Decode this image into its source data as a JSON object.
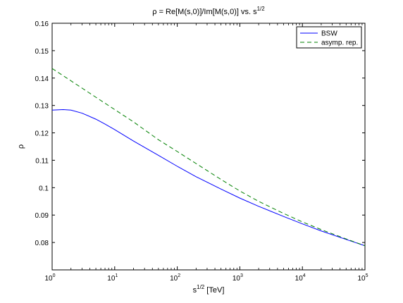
{
  "chart_data": {
    "type": "line",
    "title": "ρ = Re[M(s,0)]/Im[M(s,0)] vs. s",
    "title_superscript": "1/2",
    "xlabel": "s",
    "xlabel_superscript": "1/2",
    "xlabel_unit": " [TeV]",
    "ylabel": "ρ",
    "xscale": "log",
    "xlim": [
      1,
      100000
    ],
    "ylim": [
      0.07,
      0.16
    ],
    "grid": false,
    "legend_position": "top-right",
    "x_ticks": [
      {
        "value": 1,
        "base": "10",
        "exp": "0"
      },
      {
        "value": 10,
        "base": "10",
        "exp": "1"
      },
      {
        "value": 100,
        "base": "10",
        "exp": "2"
      },
      {
        "value": 1000,
        "base": "10",
        "exp": "3"
      },
      {
        "value": 10000,
        "base": "10",
        "exp": "4"
      },
      {
        "value": 100000,
        "base": "10",
        "exp": "5"
      }
    ],
    "y_ticks": [
      {
        "value": 0.08,
        "label": "0.08"
      },
      {
        "value": 0.09,
        "label": "0.09"
      },
      {
        "value": 0.1,
        "label": "0.1"
      },
      {
        "value": 0.11,
        "label": "0.11"
      },
      {
        "value": 0.12,
        "label": "0.12"
      },
      {
        "value": 0.13,
        "label": "0.13"
      },
      {
        "value": 0.14,
        "label": "0.14"
      },
      {
        "value": 0.15,
        "label": "0.15"
      },
      {
        "value": 0.16,
        "label": "0.16"
      }
    ],
    "series": [
      {
        "name": "BSW",
        "color": "#0000ff",
        "line_style": "solid",
        "x": [
          1,
          1.5,
          2,
          3,
          5,
          7,
          10,
          20,
          50,
          100,
          200,
          500,
          1000,
          2000,
          5000,
          10000,
          20000,
          50000,
          100000
        ],
        "y": [
          0.1283,
          0.1285,
          0.1283,
          0.1272,
          0.125,
          0.1232,
          0.1212,
          0.117,
          0.1118,
          0.1078,
          0.104,
          0.0995,
          0.0962,
          0.0932,
          0.0895,
          0.0868,
          0.0842,
          0.0811,
          0.0788
        ]
      },
      {
        "name": "asymp. rep.",
        "color": "#008000",
        "line_style": "dashed",
        "x": [
          1,
          2,
          5,
          10,
          20,
          50,
          100,
          200,
          500,
          1000,
          2000,
          5000,
          10000,
          20000,
          50000,
          100000
        ],
        "y": [
          0.1435,
          0.139,
          0.133,
          0.1285,
          0.124,
          0.1175,
          0.1132,
          0.1088,
          0.103,
          0.0988,
          0.095,
          0.0906,
          0.0875,
          0.0847,
          0.0813,
          0.0788
        ]
      }
    ]
  }
}
